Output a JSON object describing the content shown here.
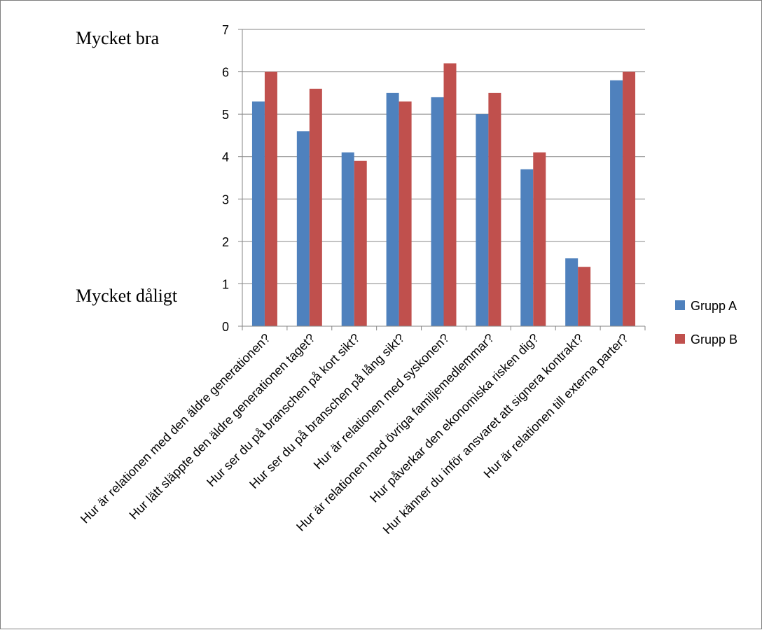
{
  "chart_data": {
    "type": "bar",
    "categories": [
      "Hur är relationen med den äldre generationen?",
      "Hur lätt släppte den äldre generationen taget?",
      "Hur ser du på branschen på kort sikt?",
      "Hur ser du på branschen på lång sikt?",
      "Hur är relationen med syskonen?",
      "Hur är relationen med övriga familjemedlemmar?",
      "Hur påverkar den ekonomiska risken dig?",
      "Hur känner du inför ansvaret att signera kontrakt?",
      "Hur är relationen till externa parter?"
    ],
    "series": [
      {
        "name": "Grupp A",
        "color": "#4f81bd",
        "values": [
          5.3,
          4.6,
          4.1,
          5.5,
          5.4,
          5.0,
          3.7,
          1.6,
          5.8
        ]
      },
      {
        "name": "Grupp B",
        "color": "#c0504d",
        "values": [
          6.0,
          5.6,
          3.9,
          5.3,
          6.2,
          5.5,
          4.1,
          1.4,
          6.0
        ]
      }
    ],
    "ylim": [
      0,
      7
    ],
    "yticks": [
      "0",
      "1",
      "2",
      "3",
      "4",
      "5",
      "6",
      "7"
    ],
    "annotations": {
      "top": "Mycket bra",
      "bottom": "Mycket dåligt"
    },
    "grid": true,
    "legend": "right"
  }
}
